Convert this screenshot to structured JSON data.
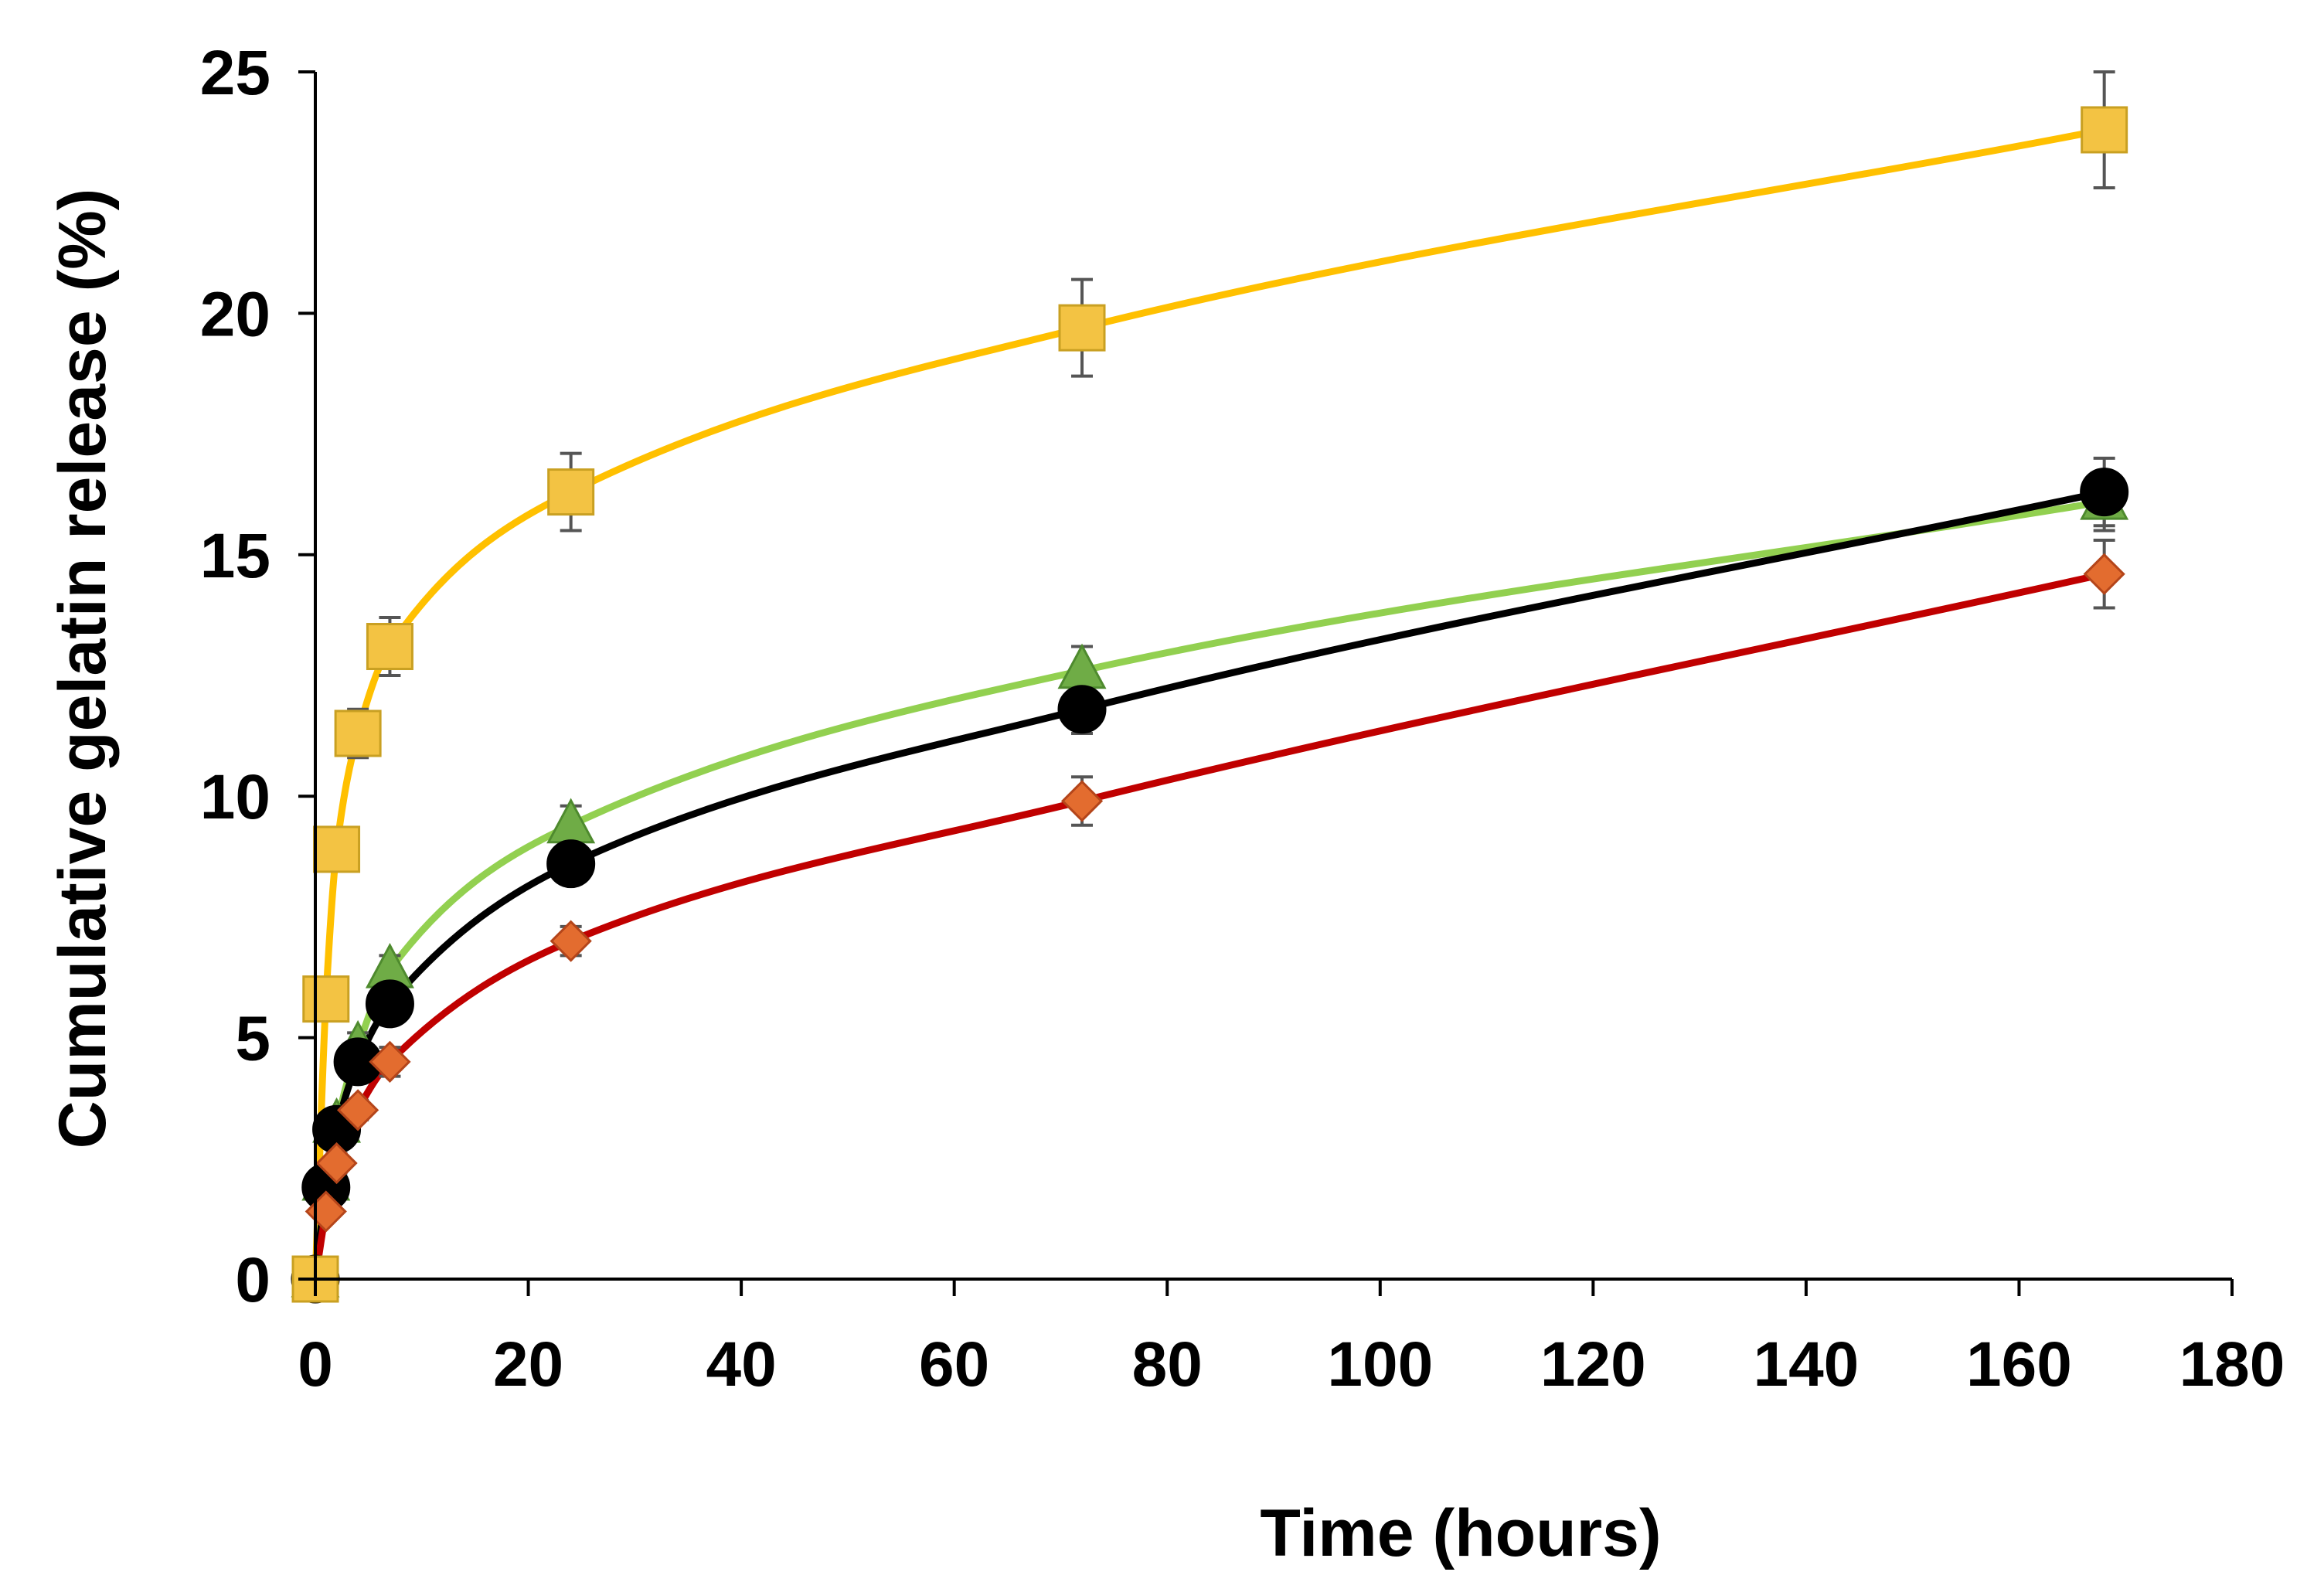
{
  "chart_data": {
    "type": "line",
    "title": "",
    "xlabel": "Time (hours)",
    "ylabel": "Cumulative gelatin release (%)",
    "xlim": [
      0,
      180
    ],
    "ylim": [
      0,
      25
    ],
    "xticks": [
      0,
      20,
      40,
      60,
      80,
      100,
      120,
      140,
      160,
      180
    ],
    "yticks": [
      0,
      5,
      10,
      15,
      20,
      25
    ],
    "grid": false,
    "legend": "none",
    "series": [
      {
        "name": "yellow-squares",
        "color": "#FFC000",
        "marker_fill": "#F3C343",
        "marker_edge": "#C9A022",
        "marker": "square",
        "x": [
          0,
          1,
          2,
          4,
          7,
          24,
          72,
          168
        ],
        "y": [
          0,
          5.8,
          8.9,
          11.3,
          13.1,
          16.3,
          19.7,
          23.8
        ],
        "err": [
          0,
          0.3,
          0.3,
          0.5,
          0.6,
          0.8,
          1.0,
          1.2
        ]
      },
      {
        "name": "green-triangles",
        "color": "#92D050",
        "marker_fill": "#6FAC46",
        "marker_edge": "#4E8A2E",
        "marker": "triangle",
        "x": [
          0,
          1,
          2,
          4,
          7,
          24,
          72,
          168
        ],
        "y": [
          0,
          2.0,
          3.2,
          4.8,
          6.4,
          9.4,
          12.6,
          16.1
        ],
        "err": [
          0,
          0.2,
          0.2,
          0.3,
          0.3,
          0.4,
          0.5,
          0.6
        ]
      },
      {
        "name": "black-circles",
        "color": "#000000",
        "marker_fill": "#000000",
        "marker_edge": "#000000",
        "marker": "circle",
        "x": [
          0,
          1,
          2,
          4,
          7,
          24,
          72,
          168
        ],
        "y": [
          0,
          1.9,
          3.1,
          4.5,
          5.7,
          8.6,
          11.8,
          16.3
        ],
        "err": [
          0,
          0.2,
          0.2,
          0.3,
          0.3,
          0.4,
          0.5,
          0.7
        ]
      },
      {
        "name": "red-diamonds",
        "color": "#C00000",
        "marker_fill": "#E36C2F",
        "marker_edge": "#B4451A",
        "marker": "diamond",
        "x": [
          0,
          1,
          2,
          4,
          7,
          24,
          72,
          168
        ],
        "y": [
          0,
          1.4,
          2.4,
          3.5,
          4.5,
          7.0,
          9.9,
          14.6
        ],
        "err": [
          0,
          0.1,
          0.2,
          0.2,
          0.3,
          0.3,
          0.5,
          0.7
        ]
      }
    ]
  }
}
